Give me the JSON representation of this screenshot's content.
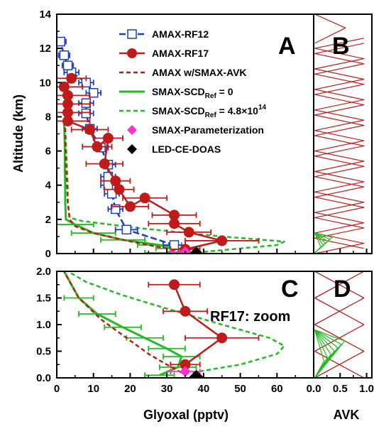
{
  "chart_data": [
    {
      "panel": "A",
      "type": "line",
      "xlim": [
        0,
        70
      ],
      "ylim": [
        0,
        14
      ],
      "xticks": [
        0,
        10,
        20,
        30,
        40,
        50,
        60
      ],
      "yticks": [
        0,
        2,
        4,
        6,
        8,
        10,
        12,
        14
      ],
      "ylabel": "Altitude (km)",
      "panel_label": "A",
      "grid": false,
      "legend_placement": "top-right",
      "legend": [
        {
          "label": "AMAX-RF12",
          "sub": "",
          "sup": "",
          "color": "#1c3fbf",
          "style": "dash-square"
        },
        {
          "label": "AMAX-RF17",
          "sub": "",
          "sup": "",
          "color": "#c01a1a",
          "style": "solid-circle"
        },
        {
          "label": "AMAX w/SMAX-AVK",
          "sub": "",
          "sup": "",
          "color": "#c01a1a",
          "style": "dashed"
        },
        {
          "label": "SMAX-SCD",
          "sub": "Ref",
          "sup": "",
          "suffix": " = 0",
          "color": "#22bb22",
          "style": "solid"
        },
        {
          "label": "SMAX-SCD",
          "sub": "Ref",
          "sup": "14",
          "suffix": " = 4.8×10",
          "color": "#22bb22",
          "style": "dashed"
        },
        {
          "label": "SMAX-Parameterization",
          "sub": "",
          "sup": "",
          "color": "#ff33cc",
          "style": "diamond"
        },
        {
          "label": "LED-CE-DOAS",
          "sub": "",
          "sup": "",
          "color": "#000000",
          "style": "diamond"
        }
      ],
      "series": [
        {
          "name": "AMAX-RF12",
          "color": "#1c3fbf",
          "x": [
            32,
            19,
            16,
            15,
            14,
            14,
            14,
            12,
            9,
            8,
            8,
            10,
            8,
            4,
            3,
            2,
            1
          ],
          "y": [
            0.5,
            1.4,
            2.6,
            3.5,
            4.0,
            4.5,
            5.2,
            6.2,
            7.3,
            8.2,
            8.8,
            9.4,
            10.0,
            10.6,
            11.0,
            11.6,
            12.4
          ],
          "xerr": [
            3,
            3,
            2,
            2,
            2,
            2,
            2,
            2,
            2,
            2,
            2,
            2,
            2,
            2,
            1.5,
            1.5,
            1.5
          ]
        },
        {
          "name": "AMAX-RF17",
          "color": "#c01a1a",
          "x": [
            35,
            45,
            36,
            32,
            32,
            24,
            20,
            17,
            16,
            13,
            14,
            11,
            9,
            3,
            3,
            3,
            3,
            2,
            4
          ],
          "y": [
            0.25,
            0.75,
            1.25,
            1.75,
            2.25,
            3.25,
            2.75,
            3.75,
            4.25,
            5.25,
            6.75,
            6.25,
            7.25,
            7.75,
            8.25,
            8.75,
            9.25,
            9.75,
            10.25
          ],
          "xerr": [
            4,
            10,
            6,
            7,
            6,
            6,
            5,
            4,
            4,
            5,
            4,
            4,
            5,
            6,
            6,
            6,
            6,
            5,
            4
          ]
        },
        {
          "name": "AMAX w/SMAX-AVK",
          "color": "#c01a1a",
          "x": [
            34,
            30,
            25,
            18,
            10,
            5,
            3.5,
            3,
            2.8,
            2.5,
            2.4,
            2.3,
            2.2
          ],
          "y": [
            0.1,
            0.3,
            0.5,
            0.8,
            1.2,
            1.6,
            2.0,
            3.0,
            4.0,
            5.0,
            6.0,
            7.0,
            7.5
          ]
        },
        {
          "name": "SMAX-SCD = 0",
          "color": "#22bb22",
          "x": [
            30,
            33,
            28,
            18,
            10,
            5,
            2.5,
            2.3,
            2.3,
            2.2,
            2.2,
            2.1,
            2.0
          ],
          "y": [
            0.05,
            0.3,
            0.5,
            0.8,
            1.2,
            1.7,
            2.0,
            3.0,
            4.0,
            5.0,
            6.0,
            7.0,
            7.7
          ],
          "xerr": [
            6,
            6,
            6,
            6,
            6,
            5,
            0,
            0,
            0,
            0,
            0,
            0,
            0
          ]
        },
        {
          "name": "SMAX-SCD = 4.8×10^14",
          "color": "#22bb22",
          "x": [
            40,
            60,
            62,
            45,
            22,
            7,
            3.5,
            3,
            3,
            2.8,
            2.6,
            2.4,
            2.2
          ],
          "y": [
            0.1,
            0.5,
            0.7,
            1.0,
            1.5,
            1.9,
            2.1,
            3.0,
            4.0,
            5.0,
            6.0,
            7.0,
            7.7
          ]
        },
        {
          "name": "SMAX-Parameterization",
          "color": "#ff33cc",
          "x": [
            35
          ],
          "y": [
            0.1
          ],
          "xerr": [
            4
          ]
        },
        {
          "name": "LED-CE-DOAS",
          "color": "#000000",
          "x": [
            38
          ],
          "y": [
            0.0
          ]
        }
      ]
    },
    {
      "panel": "B",
      "type": "line",
      "xlim": [
        0,
        1.1
      ],
      "ylim": [
        0,
        14
      ],
      "panel_label": "B",
      "avk_red": {
        "alt_min": 0,
        "alt_max": 12.6,
        "step": 0.6,
        "x_max": 0.95,
        "peak_line_alt": 12.8
      },
      "avk_green": {
        "alt_max": 1.2,
        "x_max": 0.35
      }
    },
    {
      "panel": "C",
      "type": "line",
      "xlim": [
        0,
        70
      ],
      "ylim": [
        0,
        2.0
      ],
      "xticks": [
        0,
        10,
        20,
        30,
        40,
        50,
        60
      ],
      "yticks": [
        0.0,
        0.5,
        1.0,
        1.5,
        2.0
      ],
      "xlabel": "Glyoxal (pptv)",
      "panel_label": "C",
      "annotation": "RF17: zoom",
      "series": [
        {
          "name": "AMAX-RF17",
          "color": "#c01a1a",
          "x": [
            35,
            45,
            35,
            32
          ],
          "y": [
            0.25,
            0.75,
            1.25,
            1.75
          ],
          "xerr": [
            4,
            10,
            6,
            7
          ]
        },
        {
          "name": "AMAX w/SMAX-AVK",
          "color": "#c01a1a",
          "x": [
            34,
            30,
            25,
            19,
            12,
            6,
            2
          ],
          "y": [
            0.1,
            0.25,
            0.45,
            0.75,
            1.1,
            1.5,
            2.0
          ]
        },
        {
          "name": "SMAX-SCD = 0",
          "color": "#22bb22",
          "x": [
            28,
            33,
            34,
            30,
            24,
            18,
            11,
            6,
            2
          ],
          "y": [
            0.05,
            0.2,
            0.4,
            0.55,
            0.75,
            0.95,
            1.2,
            1.5,
            2.0
          ],
          "xerr": [
            4,
            5,
            5,
            5,
            5,
            5,
            5,
            4,
            0
          ]
        },
        {
          "name": "SMAX-SCD = 4.8×10^14",
          "color": "#22bb22",
          "x": [
            37,
            50,
            60,
            62,
            58,
            45,
            30,
            18,
            8,
            3
          ],
          "y": [
            0.1,
            0.25,
            0.45,
            0.6,
            0.75,
            1.0,
            1.3,
            1.55,
            1.8,
            2.0
          ]
        },
        {
          "name": "SMAX-Parameterization",
          "color": "#ff33cc",
          "x": [
            35
          ],
          "y": [
            0.12
          ],
          "xerr": [
            4
          ]
        },
        {
          "name": "LED-CE-DOAS",
          "color": "#000000",
          "x": [
            38
          ],
          "y": [
            0.02
          ]
        }
      ]
    },
    {
      "panel": "D",
      "type": "line",
      "xlim": [
        0,
        1.1
      ],
      "ylim": [
        0,
        2.0
      ],
      "xticks": [
        0.0,
        0.5,
        1.0
      ],
      "xticklabels": [
        "0.0",
        "0.5",
        "1.0"
      ],
      "xlabel": "AVK",
      "panel_label": "D",
      "avk_red": {
        "crossings": [
          0.0,
          0.5,
          1.0,
          1.5,
          2.0
        ],
        "x_max": 0.95
      },
      "avk_green": {
        "alt_max": 0.9,
        "x_max": 0.65
      }
    }
  ]
}
